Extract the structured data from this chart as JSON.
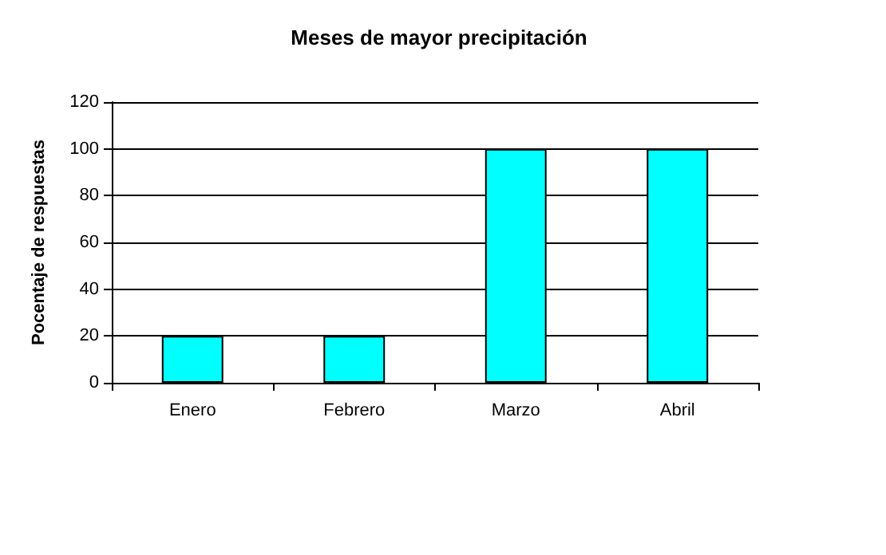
{
  "chart_data": {
    "type": "bar",
    "title": "Meses de mayor precipitación",
    "ylabel": "Pocentaje de respuestas",
    "categories": [
      "Enero",
      "Febrero",
      "Marzo",
      "Abril"
    ],
    "values": [
      20,
      20,
      100,
      100
    ],
    "color": "#00ffff",
    "ylim": [
      0,
      120
    ],
    "yticks": [
      0,
      20,
      40,
      60,
      80,
      100,
      120
    ],
    "grid": "y"
  }
}
